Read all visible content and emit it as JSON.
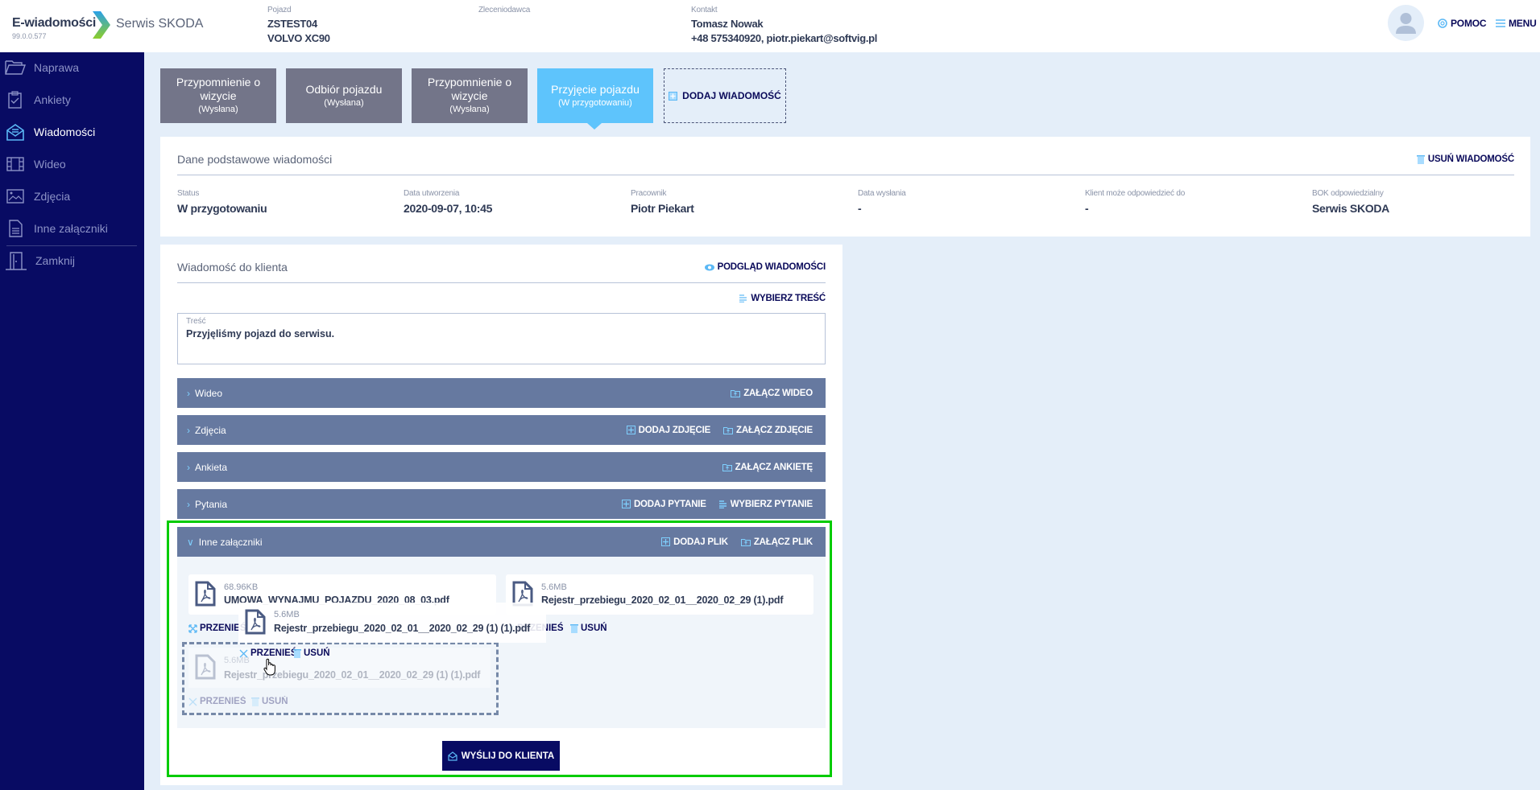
{
  "header": {
    "app_title": "E-wiadomości",
    "version": "99.0.0.577",
    "service": "Serwis SKODA",
    "vehicle_label": "Pojazd",
    "vehicle_plate": "ZSTEST04",
    "vehicle_model": "VOLVO XC90",
    "client_label": "Zleceniodawca",
    "contact_label": "Kontakt",
    "contact_name": "Tomasz Nowak",
    "contact_details": "+48 575340920, piotr.piekart@softvig.pl",
    "help_label": "POMOC",
    "menu_label": "MENU"
  },
  "sidebar": {
    "items": [
      {
        "label": "Naprawa",
        "icon": "folder-icon"
      },
      {
        "label": "Ankiety",
        "icon": "clipboard-check-icon"
      },
      {
        "label": "Wiadomości",
        "icon": "envelope-open-icon",
        "active": true
      },
      {
        "label": "Wideo",
        "icon": "film-icon"
      },
      {
        "label": "Zdjęcia",
        "icon": "image-icon"
      },
      {
        "label": "Inne załączniki",
        "icon": "document-icon"
      },
      {
        "label": "Zamknij",
        "icon": "door-icon"
      }
    ]
  },
  "tabs": [
    {
      "title": "Przypomnienie o wizycie",
      "status": "(Wysłana)"
    },
    {
      "title": "Odbiór pojazdu",
      "status": "(Wysłana)"
    },
    {
      "title": "Przypomnienie o wizycie",
      "status": "(Wysłana)"
    },
    {
      "title": "Przyjęcie pojazdu",
      "status": "(W przygotowaniu)",
      "active": true
    }
  ],
  "add_message_label": "DODAJ WIADOMOŚĆ",
  "basic": {
    "title": "Dane podstawowe wiadomości",
    "delete_label": "USUŃ WIADOMOŚĆ",
    "fields": [
      {
        "label": "Status",
        "value": "W przygotowaniu"
      },
      {
        "label": "Data utworzenia",
        "value": "2020-09-07, 10:45"
      },
      {
        "label": "Pracownik",
        "value": "Piotr Piekart"
      },
      {
        "label": "Data wysłania",
        "value": "-"
      },
      {
        "label": "Klient może odpowiedzieć do",
        "value": "-"
      },
      {
        "label": "BOK odpowiedzialny",
        "value": "Serwis SKODA"
      }
    ]
  },
  "message": {
    "title": "Wiadomość do klienta",
    "preview_label": "PODGLĄD WIADOMOŚCI",
    "choose_content_label": "WYBIERZ TREŚĆ",
    "content_label": "Treść",
    "content_value": "Przyjęliśmy pojazd do serwisu.",
    "sections": [
      {
        "label": "Wideo",
        "actions": [
          "ZAŁĄCZ WIDEO"
        ]
      },
      {
        "label": "Zdjęcia",
        "actions": [
          "DODAJ ZDJĘCIE",
          "ZAŁĄCZ ZDJĘCIE"
        ]
      },
      {
        "label": "Ankieta",
        "actions": [
          "ZAŁĄCZ ANKIETĘ"
        ]
      },
      {
        "label": "Pytania",
        "actions": [
          "DODAJ PYTANIE",
          "WYBIERZ PYTANIE"
        ]
      },
      {
        "label": "Inne załączniki",
        "actions": [
          "DODAJ PLIK",
          "ZAŁĄCZ PLIK"
        ],
        "expanded": true
      }
    ],
    "files": [
      {
        "size": "68.96KB",
        "name": "UMOWA_WYNAJMU_POJAZDU_2020_08_03.pdf"
      },
      {
        "size": "5.6MB",
        "name": "Rejestr_przebiegu_2020_02_01__2020_02_29 (1).pdf"
      },
      {
        "size": "5.6MB",
        "name": "Rejestr_przebiegu_2020_02_01__2020_02_29 (1) (1).pdf",
        "dragging": true
      }
    ],
    "move_label": "PRZENIEŚ",
    "delete_label": "USUŃ",
    "send_label": "WYŚLIJ DO KLIENTA"
  },
  "colors": {
    "sidebar": "#080b63",
    "accent": "#5ec4fc",
    "tab": "#737589",
    "section": "#6679a0",
    "highlight": "#00cc00"
  }
}
